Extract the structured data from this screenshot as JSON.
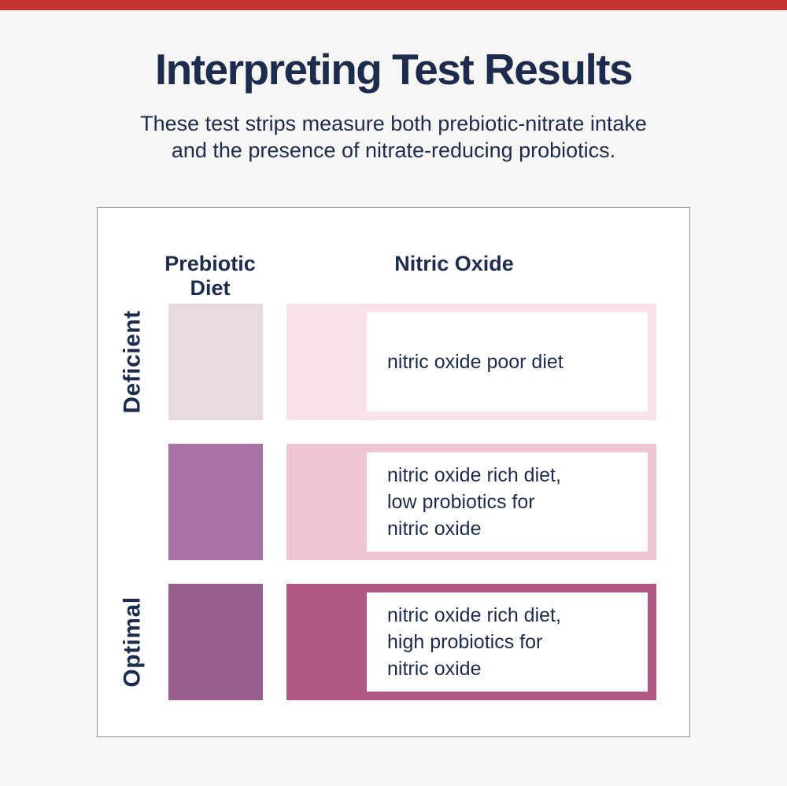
{
  "colors": {
    "accent_bar": "#c5312f",
    "background": "#f7f6f5",
    "navy_text": "#1d2b4d",
    "card_border": "#8f8f8f"
  },
  "header": {
    "title": "Interpreting Test Results",
    "subtitle_line1": "These test strips measure both prebiotic-nitrate intake",
    "subtitle_line2": "and the presence of nitrate-reducing probiotics."
  },
  "chart": {
    "column_headers": {
      "col1_line1": "Prebiotic",
      "col1_line2": "Diet",
      "col2": "Nitric Oxide"
    },
    "rows": [
      {
        "label": "Deficient",
        "swatch_color": "#e8dae1",
        "bar_color": "#f9e2ea",
        "lines": [
          "nitric oxide poor diet"
        ]
      },
      {
        "label": "",
        "swatch_color": "#a874a6",
        "bar_color": "#efc5d5",
        "lines": [
          "nitric oxide rich diet,",
          "low probiotics for",
          "nitric oxide"
        ]
      },
      {
        "label": "Optimal",
        "swatch_color": "#97608f",
        "bar_color": "#b05883",
        "lines": [
          "nitric oxide rich diet,",
          "high probiotics for",
          "nitric oxide"
        ]
      }
    ]
  }
}
